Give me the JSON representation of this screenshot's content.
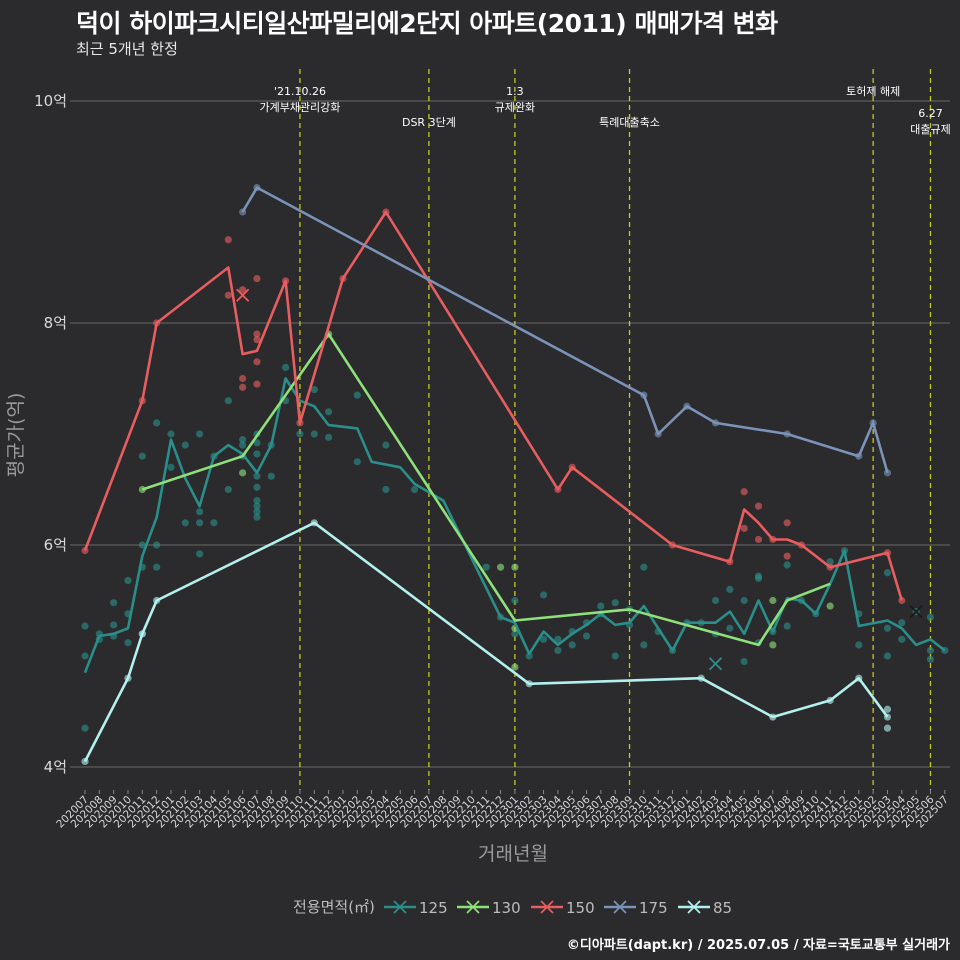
{
  "chart_data": {
    "type": "line",
    "title": "덕이 하이파크시티일산파밀리에2단지 아파트(2011) 매매가격 변화",
    "subtitle": "최근 5개년 한정",
    "xlabel": "거래년월",
    "ylabel": "평균가(억)",
    "caption": "©디아파트(dapt.kr) / 2025.07.05 / 자료=국토교통부 실거래가",
    "ylim": [
      3.85,
      10.3
    ],
    "y_ticks": [
      {
        "value": 4,
        "label": "4억"
      },
      {
        "value": 6,
        "label": "6억"
      },
      {
        "value": 8,
        "label": "8억"
      },
      {
        "value": 10,
        "label": "10억"
      }
    ],
    "categories": [
      "202007",
      "202008",
      "202009",
      "202010",
      "202011",
      "202012",
      "202101",
      "202102",
      "202103",
      "202104",
      "202105",
      "202106",
      "202107",
      "202108",
      "202109",
      "202110",
      "202111",
      "202112",
      "202201",
      "202202",
      "202203",
      "202204",
      "202205",
      "202206",
      "202207",
      "202208",
      "202209",
      "202210",
      "202211",
      "202212",
      "202301",
      "202302",
      "202303",
      "202304",
      "202305",
      "202306",
      "202307",
      "202308",
      "202309",
      "202310",
      "202311",
      "202312",
      "202401",
      "202402",
      "202403",
      "202404",
      "202405",
      "202406",
      "202407",
      "202408",
      "202409",
      "202410",
      "202411",
      "202412",
      "202501",
      "202502",
      "202503",
      "202504",
      "202505",
      "202506",
      "202507"
    ],
    "events": [
      {
        "x": 15.0,
        "lines": [
          "'21.10.26",
          "가계부채관리강화"
        ],
        "row": 0
      },
      {
        "x": 24.0,
        "lines": [
          "DSR 3단계"
        ],
        "row": 1
      },
      {
        "x": 30.0,
        "lines": [
          "1.3",
          "규제완화"
        ],
        "row": 0
      },
      {
        "x": 38.0,
        "lines": [
          "특례대출축소"
        ],
        "row": 1
      },
      {
        "x": 55.0,
        "lines": [
          "토허제 해제"
        ],
        "row": 0
      },
      {
        "x": 59.0,
        "lines": [
          "6.27",
          "대출규제"
        ],
        "row": 2
      }
    ],
    "legend_title": "전용면적(㎡)",
    "series": [
      {
        "name": "125",
        "color": "#2a8f8a",
        "line": [
          [
            0,
            4.85
          ],
          [
            1,
            5.18
          ],
          [
            2,
            5.2
          ],
          [
            3,
            5.25
          ],
          [
            4,
            5.9
          ],
          [
            5,
            6.25
          ],
          [
            6,
            6.95
          ],
          [
            7,
            6.6
          ],
          [
            8,
            6.35
          ],
          [
            9,
            6.8
          ],
          [
            10,
            6.9
          ],
          [
            11,
            6.82
          ],
          [
            12,
            6.65
          ],
          [
            13,
            6.9
          ],
          [
            14,
            7.5
          ],
          [
            15,
            7.3
          ],
          [
            16,
            7.25
          ],
          [
            17,
            7.08
          ],
          [
            19,
            7.05
          ],
          [
            20,
            6.75
          ],
          [
            22,
            6.7
          ],
          [
            23,
            6.55
          ],
          [
            25,
            6.4
          ],
          [
            29,
            5.35
          ],
          [
            30,
            5.3
          ],
          [
            31,
            5.02
          ],
          [
            32,
            5.22
          ],
          [
            33,
            5.1
          ],
          [
            34,
            5.2
          ],
          [
            35,
            5.28
          ],
          [
            36,
            5.38
          ],
          [
            37,
            5.28
          ],
          [
            38,
            5.3
          ],
          [
            39,
            5.45
          ],
          [
            40,
            5.25
          ],
          [
            41,
            5.05
          ],
          [
            42,
            5.3
          ],
          [
            43,
            5.3
          ],
          [
            44,
            5.3
          ],
          [
            45,
            5.4
          ],
          [
            46,
            5.2
          ],
          [
            47,
            5.5
          ],
          [
            48,
            5.22
          ],
          [
            49,
            5.52
          ],
          [
            50,
            5.5
          ],
          [
            51,
            5.38
          ],
          [
            52,
            5.65
          ],
          [
            53,
            5.95
          ],
          [
            54,
            5.27
          ],
          [
            56,
            5.32
          ],
          [
            57,
            5.25
          ],
          [
            58,
            5.1
          ],
          [
            59,
            5.15
          ],
          [
            60,
            5.05
          ]
        ],
        "points": [
          [
            0,
            4.35
          ],
          [
            0,
            5.0
          ],
          [
            0,
            5.27
          ],
          [
            1,
            5.2
          ],
          [
            1,
            5.15
          ],
          [
            2,
            5.48
          ],
          [
            2,
            5.28
          ],
          [
            2,
            5.18
          ],
          [
            3,
            5.68
          ],
          [
            3,
            5.38
          ],
          [
            3,
            5.12
          ],
          [
            4,
            6.8
          ],
          [
            4,
            6.0
          ],
          [
            4,
            5.8
          ],
          [
            4,
            5.2
          ],
          [
            5,
            7.1
          ],
          [
            5,
            6.0
          ],
          [
            5,
            5.8
          ],
          [
            6,
            7.0
          ],
          [
            6,
            6.7
          ],
          [
            7,
            6.9
          ],
          [
            7,
            6.2
          ],
          [
            8,
            7.0
          ],
          [
            8,
            6.3
          ],
          [
            8,
            6.2
          ],
          [
            8,
            5.92
          ],
          [
            9,
            6.8
          ],
          [
            9,
            6.2
          ],
          [
            10,
            7.3
          ],
          [
            10,
            6.5
          ],
          [
            11,
            6.95
          ],
          [
            11,
            6.9
          ],
          [
            11,
            6.8
          ],
          [
            12,
            7.0
          ],
          [
            12,
            6.92
          ],
          [
            12,
            6.82
          ],
          [
            12,
            6.62
          ],
          [
            12,
            6.52
          ],
          [
            12,
            6.4
          ],
          [
            12,
            6.35
          ],
          [
            12,
            6.3
          ],
          [
            12,
            6.25
          ],
          [
            13,
            6.9
          ],
          [
            13,
            6.62
          ],
          [
            14,
            7.6
          ],
          [
            14,
            7.3
          ],
          [
            15,
            7.0
          ],
          [
            16,
            7.0
          ],
          [
            16,
            7.4
          ],
          [
            17,
            7.2
          ],
          [
            17,
            6.97
          ],
          [
            19,
            7.35
          ],
          [
            19,
            6.75
          ],
          [
            21,
            6.9
          ],
          [
            21,
            6.5
          ],
          [
            23,
            6.5
          ],
          [
            28,
            5.8
          ],
          [
            29,
            5.35
          ],
          [
            30,
            5.5
          ],
          [
            30,
            5.2
          ],
          [
            31,
            5.0
          ],
          [
            32,
            5.55
          ],
          [
            32,
            5.15
          ],
          [
            33,
            5.15
          ],
          [
            33,
            5.05
          ],
          [
            34,
            5.22
          ],
          [
            34,
            5.1
          ],
          [
            35,
            5.3
          ],
          [
            35,
            5.18
          ],
          [
            36,
            5.45
          ],
          [
            36,
            5.38
          ],
          [
            37,
            5.48
          ],
          [
            37,
            5.0
          ],
          [
            38,
            5.42
          ],
          [
            38,
            5.28
          ],
          [
            39,
            5.8
          ],
          [
            39,
            5.1
          ],
          [
            40,
            5.22
          ],
          [
            41,
            5.05
          ],
          [
            42,
            5.3
          ],
          [
            43,
            5.3
          ],
          [
            44,
            5.5
          ],
          [
            44,
            5.2
          ],
          [
            45,
            5.6
          ],
          [
            45,
            5.25
          ],
          [
            46,
            5.5
          ],
          [
            46,
            4.95
          ],
          [
            47,
            5.72
          ],
          [
            47,
            5.7
          ],
          [
            47,
            5.12
          ],
          [
            48,
            5.22
          ],
          [
            49,
            5.82
          ],
          [
            49,
            5.27
          ],
          [
            50,
            5.5
          ],
          [
            51,
            5.38
          ],
          [
            52,
            5.85
          ],
          [
            53,
            5.95
          ],
          [
            54,
            5.38
          ],
          [
            54,
            5.1
          ],
          [
            56,
            5.75
          ],
          [
            56,
            5.25
          ],
          [
            56,
            5.0
          ],
          [
            57,
            5.3
          ],
          [
            57,
            5.15
          ],
          [
            58,
            5.4
          ],
          [
            59,
            5.35
          ],
          [
            59,
            5.05
          ],
          [
            59,
            4.97
          ],
          [
            60,
            5.05
          ]
        ],
        "crosses": [
          [
            44,
            4.93
          ]
        ]
      },
      {
        "name": "130",
        "color": "#8ee07a",
        "line": [
          [
            4,
            6.5
          ],
          [
            11,
            6.8
          ],
          [
            17,
            7.9
          ],
          [
            30,
            5.32
          ],
          [
            38,
            5.42
          ],
          [
            47,
            5.1
          ],
          [
            49,
            5.5
          ],
          [
            52,
            5.65
          ]
        ],
        "points": [
          [
            4,
            6.5
          ],
          [
            11,
            6.65
          ],
          [
            17,
            7.9
          ],
          [
            29,
            5.8
          ],
          [
            30,
            5.8
          ],
          [
            30,
            5.25
          ],
          [
            30,
            4.9
          ],
          [
            48,
            5.1
          ],
          [
            48,
            5.5
          ],
          [
            52,
            5.45
          ]
        ],
        "crosses": []
      },
      {
        "name": "150",
        "color": "#e85d60",
        "line": [
          [
            0,
            5.95
          ],
          [
            4,
            7.3
          ],
          [
            5,
            8.0
          ],
          [
            10,
            8.5
          ],
          [
            11,
            7.72
          ],
          [
            12,
            7.75
          ],
          [
            14,
            8.38
          ],
          [
            15,
            7.1
          ],
          [
            18,
            8.4
          ],
          [
            21,
            9.0
          ],
          [
            33,
            6.5
          ],
          [
            34,
            6.7
          ],
          [
            41,
            6.0
          ],
          [
            45,
            5.85
          ],
          [
            46,
            6.32
          ],
          [
            47,
            6.2
          ],
          [
            48,
            6.05
          ],
          [
            49,
            6.05
          ],
          [
            50,
            6.0
          ],
          [
            52,
            5.8
          ],
          [
            56,
            5.93
          ],
          [
            57,
            5.5
          ]
        ],
        "points": [
          [
            0,
            5.95
          ],
          [
            4,
            7.3
          ],
          [
            5,
            8.0
          ],
          [
            10,
            8.75
          ],
          [
            10,
            8.25
          ],
          [
            11,
            8.3
          ],
          [
            11,
            7.5
          ],
          [
            11,
            7.42
          ],
          [
            12,
            8.4
          ],
          [
            12,
            7.9
          ],
          [
            12,
            7.85
          ],
          [
            12,
            7.65
          ],
          [
            12,
            7.45
          ],
          [
            14,
            8.38
          ],
          [
            15,
            7.1
          ],
          [
            18,
            8.4
          ],
          [
            21,
            9.0
          ],
          [
            33,
            6.5
          ],
          [
            34,
            6.7
          ],
          [
            41,
            6.0
          ],
          [
            45,
            5.85
          ],
          [
            46,
            6.48
          ],
          [
            46,
            6.15
          ],
          [
            47,
            6.35
          ],
          [
            47,
            6.05
          ],
          [
            48,
            6.05
          ],
          [
            49,
            6.2
          ],
          [
            49,
            5.9
          ],
          [
            50,
            6.0
          ],
          [
            52,
            5.8
          ],
          [
            56,
            5.93
          ],
          [
            57,
            5.5
          ]
        ],
        "crosses": [
          [
            11,
            8.25
          ]
        ]
      },
      {
        "name": "175",
        "color": "#7b93b8",
        "line": [
          [
            11,
            9.0
          ],
          [
            12,
            9.22
          ],
          [
            39,
            7.35
          ],
          [
            40,
            7.0
          ],
          [
            42,
            7.25
          ],
          [
            44,
            7.1
          ],
          [
            49,
            7.0
          ],
          [
            54,
            6.8
          ],
          [
            55,
            7.1
          ],
          [
            56,
            6.65
          ]
        ],
        "points": [
          [
            11,
            9.0
          ],
          [
            12,
            9.22
          ],
          [
            39,
            7.35
          ],
          [
            40,
            7.0
          ],
          [
            42,
            7.25
          ],
          [
            44,
            7.1
          ],
          [
            49,
            7.0
          ],
          [
            54,
            6.8
          ],
          [
            55,
            7.1
          ],
          [
            56,
            6.65
          ]
        ],
        "crosses": [
          [
            58,
            5.4
          ]
        ]
      },
      {
        "name": "85",
        "color": "#b3f1ef",
        "line": [
          [
            0,
            4.05
          ],
          [
            3,
            4.8
          ],
          [
            4,
            5.2
          ],
          [
            5,
            5.5
          ],
          [
            16,
            6.2
          ],
          [
            31,
            4.75
          ],
          [
            43,
            4.8
          ],
          [
            48,
            4.45
          ],
          [
            52,
            4.6
          ],
          [
            54,
            4.8
          ],
          [
            56,
            4.45
          ]
        ],
        "points": [
          [
            0,
            4.05
          ],
          [
            3,
            4.8
          ],
          [
            4,
            5.2
          ],
          [
            5,
            5.5
          ],
          [
            16,
            6.2
          ],
          [
            31,
            4.75
          ],
          [
            43,
            4.8
          ],
          [
            48,
            4.45
          ],
          [
            52,
            4.6
          ],
          [
            54,
            4.8
          ],
          [
            56,
            4.52
          ],
          [
            56,
            4.45
          ],
          [
            56,
            4.35
          ]
        ],
        "crosses": []
      }
    ]
  }
}
